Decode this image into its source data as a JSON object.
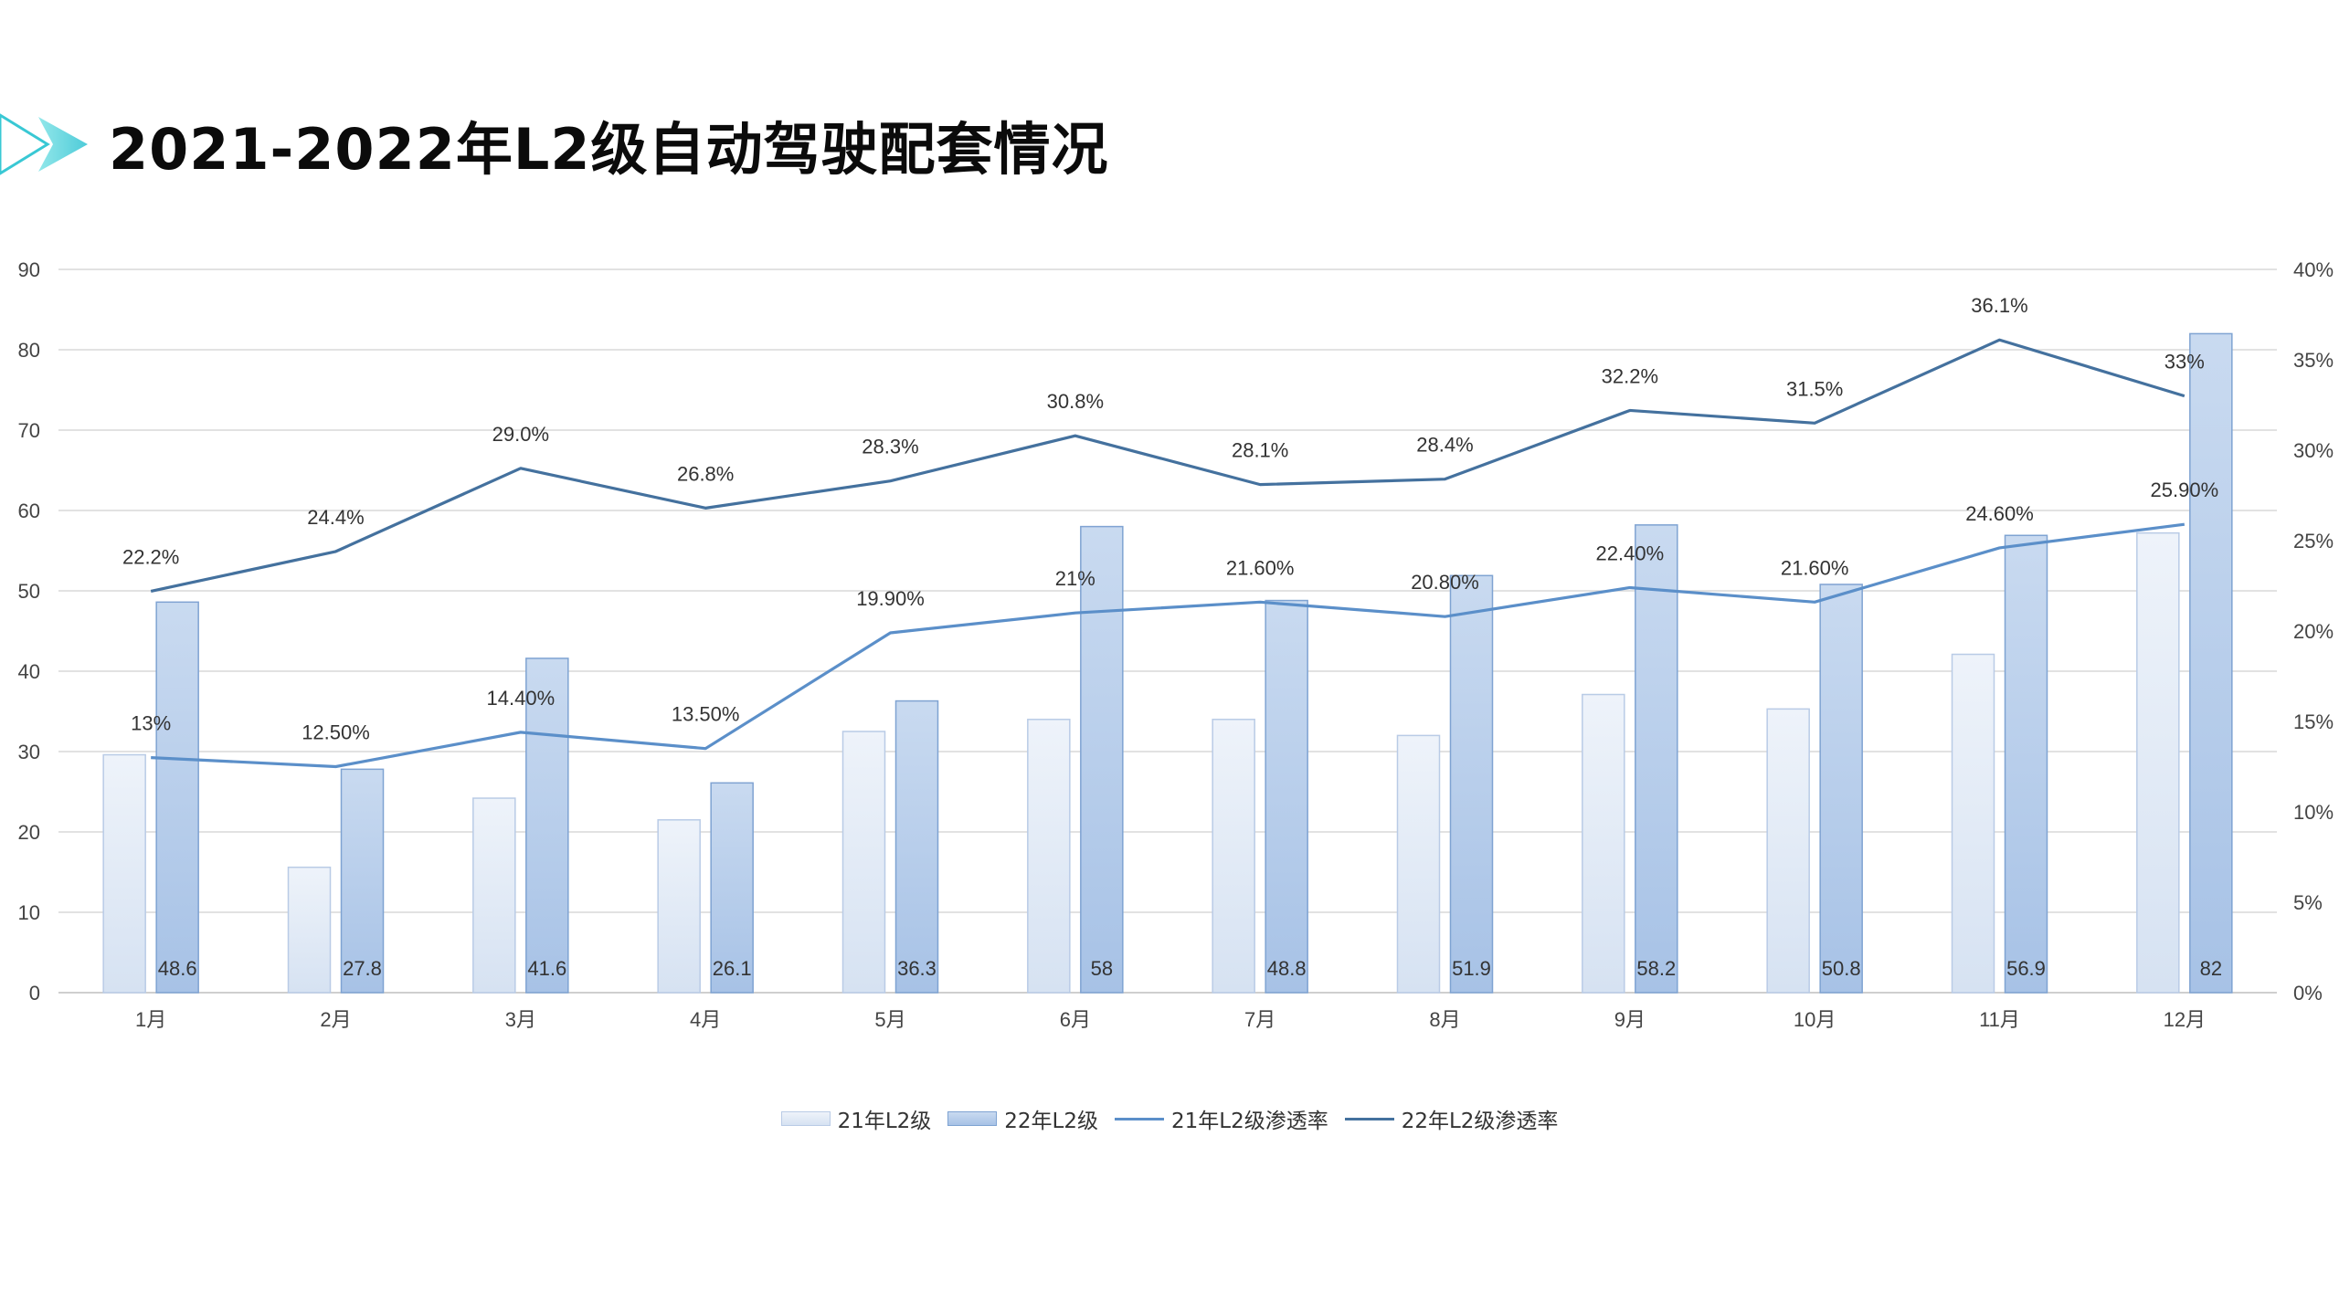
{
  "page": {
    "title": "2021-2022年L2级自动驾驶配套情况"
  },
  "colors": {
    "bar21_top": "#eef3fa",
    "bar21_bottom": "#d6e2f2",
    "bar21_stroke": "#b9cbe6",
    "bar22_top": "#c9daf0",
    "bar22_bottom": "#a7c2e6",
    "bar22_stroke": "#7fa3d2",
    "line21": "#5b8fc9",
    "line22": "#44719e",
    "grid": "#d9d9d9",
    "axis": "#bfbfbf",
    "accent": "#38c6d6"
  },
  "chart_data": {
    "type": "bar",
    "categories": [
      "1月",
      "2月",
      "3月",
      "4月",
      "5月",
      "6月",
      "7月",
      "8月",
      "9月",
      "10月",
      "11月",
      "12月"
    ],
    "y_left": {
      "min": 0,
      "max": 90,
      "ticks": [
        "0",
        "10",
        "20",
        "30",
        "40",
        "50",
        "60",
        "70",
        "80",
        "90"
      ]
    },
    "y_right": {
      "min": 0,
      "max": 40,
      "ticks": [
        "0%",
        "5%",
        "10%",
        "15%",
        "20%",
        "25%",
        "30%",
        "35%",
        "40%"
      ]
    },
    "grid": true,
    "legend_position": "bottom",
    "series": [
      {
        "name": "21年L2级",
        "kind": "bar",
        "axis": "left",
        "values": [
          29.6,
          15.6,
          24.2,
          21.5,
          32.5,
          34.0,
          34.0,
          32.0,
          37.1,
          35.3,
          42.1,
          57.2
        ]
      },
      {
        "name": "22年L2级",
        "kind": "bar",
        "axis": "left",
        "values": [
          48.6,
          27.8,
          41.6,
          26.1,
          36.3,
          58,
          48.8,
          51.9,
          58.2,
          50.8,
          56.9,
          82
        ],
        "labels": [
          "48.6",
          "27.8",
          "41.6",
          "26.1",
          "36.3",
          "58",
          "48.8",
          "51.9",
          "58.2",
          "50.8",
          "56.9",
          "82"
        ]
      },
      {
        "name": "21年L2级渗透率",
        "kind": "line",
        "axis": "right",
        "values": [
          13,
          12.5,
          14.4,
          13.5,
          19.9,
          21,
          21.6,
          20.8,
          22.4,
          21.6,
          24.6,
          25.9
        ],
        "labels": [
          "13%",
          "12.50%",
          "14.40%",
          "13.50%",
          "19.90%",
          "21%",
          "21.60%",
          "20.80%",
          "22.40%",
          "21.60%",
          "24.60%",
          "25.90%"
        ]
      },
      {
        "name": "22年L2级渗透率",
        "kind": "line",
        "axis": "right",
        "values": [
          22.2,
          24.4,
          29.0,
          26.8,
          28.3,
          30.8,
          28.1,
          28.4,
          32.2,
          31.5,
          36.1,
          33
        ],
        "labels": [
          "22.2%",
          "24.4%",
          "29.0%",
          "26.8%",
          "28.3%",
          "30.8%",
          "28.1%",
          "28.4%",
          "32.2%",
          "31.5%",
          "36.1%",
          "33%"
        ]
      }
    ]
  }
}
